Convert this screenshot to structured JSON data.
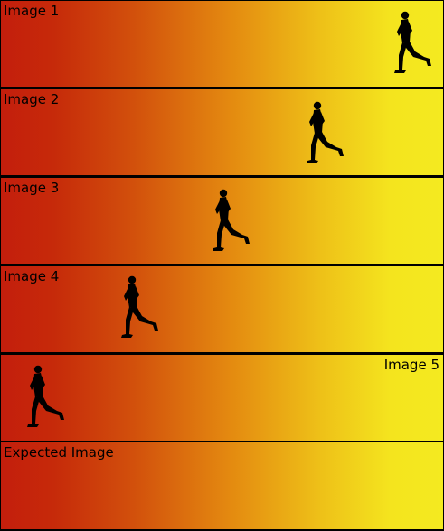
{
  "frames": [
    {
      "label": "Image 1",
      "label_side": "left"
    },
    {
      "label": "Image 2",
      "label_side": "left"
    },
    {
      "label": "Image 3",
      "label_side": "left"
    },
    {
      "label": "Image 4",
      "label_side": "left"
    },
    {
      "label": "Image 5",
      "label_side": "right"
    },
    {
      "label": "Expected Image",
      "label_side": "left"
    }
  ],
  "colors": {
    "gradient_left": "#c41e0c",
    "gradient_right": "#f4ea20",
    "runner": "#000000",
    "border": "#000000"
  },
  "icons": {
    "runner": "running-person-silhouette"
  }
}
